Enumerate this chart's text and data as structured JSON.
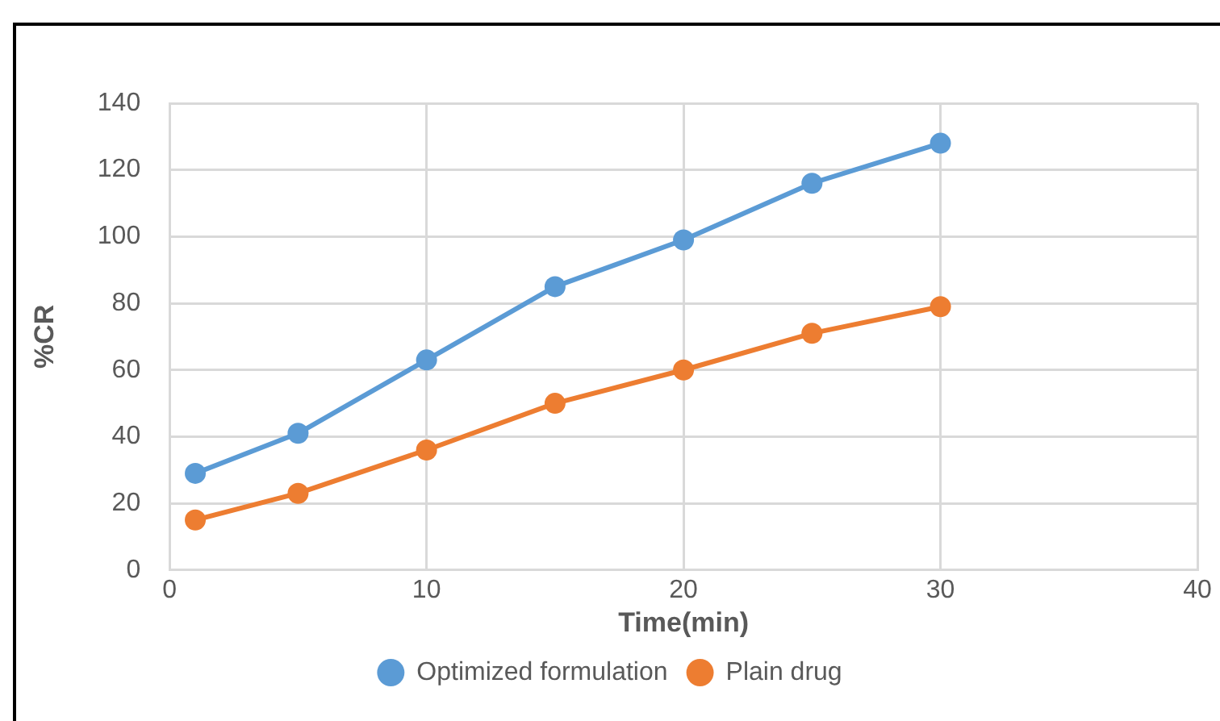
{
  "chart_data": {
    "type": "line",
    "xlabel": "Time(min)",
    "ylabel": "%CR",
    "x": [
      1,
      5,
      10,
      15,
      20,
      25,
      30
    ],
    "series": [
      {
        "name": "Optimized formulation",
        "color": "#5b9bd5",
        "values": [
          29,
          41,
          63,
          85,
          99,
          116,
          128
        ]
      },
      {
        "name": "Plain drug",
        "color": "#ed7d31",
        "values": [
          15,
          23,
          36,
          50,
          60,
          71,
          79
        ]
      }
    ],
    "xlim": [
      0,
      40
    ],
    "xticks": [
      0,
      10,
      20,
      30,
      40
    ],
    "ylim": [
      0,
      140
    ],
    "yticks": [
      0,
      20,
      40,
      60,
      80,
      100,
      120,
      140
    ],
    "grid": true,
    "legend": "bottom",
    "marker": "circle",
    "line_style": "solid"
  }
}
